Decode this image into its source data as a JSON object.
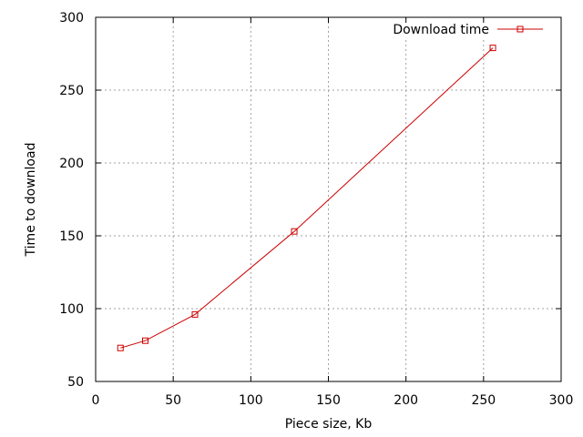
{
  "chart_data": {
    "type": "line",
    "title": "",
    "xlabel": "Piece size, Kb",
    "ylabel": "Time to download",
    "xlim": [
      0,
      300
    ],
    "ylim": [
      50,
      300
    ],
    "xticks": [
      0,
      50,
      100,
      150,
      200,
      250,
      300
    ],
    "yticks": [
      50,
      100,
      150,
      200,
      250,
      300
    ],
    "grid": true,
    "legend_position": "top-right",
    "series": [
      {
        "name": "Download time",
        "color": "#cc0000",
        "marker": "square",
        "x": [
          16,
          32,
          64,
          128,
          256
        ],
        "y": [
          73,
          78,
          96,
          153,
          279
        ]
      }
    ]
  }
}
